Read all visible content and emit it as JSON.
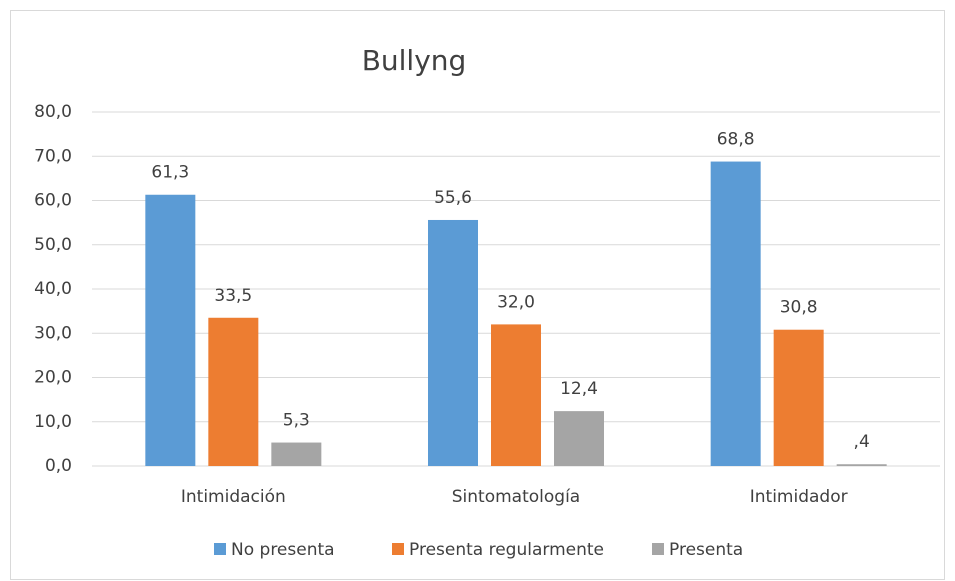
{
  "chart_data": {
    "type": "bar",
    "title": "Bullyng",
    "categories": [
      "Intimidación",
      "Sintomatología",
      "Intimidador"
    ],
    "series": [
      {
        "name": "No presenta",
        "color": "#5b9bd5",
        "values": [
          61.3,
          55.6,
          68.8
        ],
        "value_labels": [
          "61,3",
          "55,6",
          "68,8"
        ]
      },
      {
        "name": "Presenta regularmente",
        "color": "#ed7d31",
        "values": [
          33.5,
          32.0,
          30.8
        ],
        "value_labels": [
          "33,5",
          "32,0",
          "30,8"
        ]
      },
      {
        "name": "Presenta",
        "color": "#a5a5a5",
        "values": [
          5.3,
          12.4,
          0.4
        ],
        "value_labels": [
          "5,3",
          "12,4",
          ",4"
        ]
      }
    ],
    "ylim": [
      0,
      80
    ],
    "yticks": [
      {
        "value": 0,
        "label": "0,0"
      },
      {
        "value": 10,
        "label": "10,0"
      },
      {
        "value": 20,
        "label": "20,0"
      },
      {
        "value": 30,
        "label": "30,0"
      },
      {
        "value": 40,
        "label": "40,0"
      },
      {
        "value": 50,
        "label": "50,0"
      },
      {
        "value": 60,
        "label": "60,0"
      },
      {
        "value": 70,
        "label": "70,0"
      },
      {
        "value": 80,
        "label": "80,0"
      }
    ],
    "grid": true,
    "legend": "bottom"
  }
}
